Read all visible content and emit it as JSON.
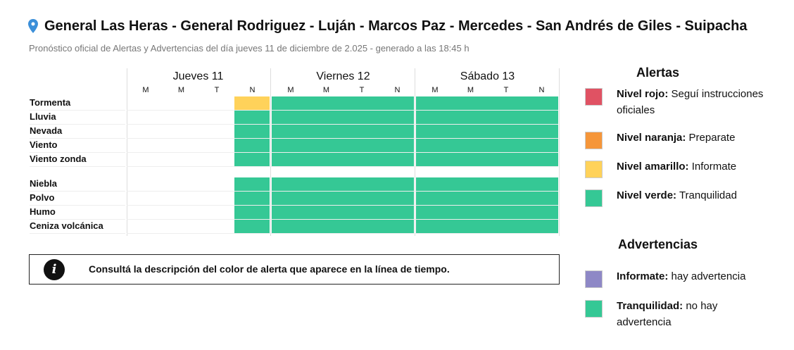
{
  "header": {
    "title": "General Las Heras - General Rodriguez - Luján - Marcos Paz - Mercedes - San Andrés de Giles - Suipacha",
    "subtitle": "Pronóstico oficial de Alertas y Advertencias del día jueves 11 de diciembre de 2.025 - generado a las 18:45 h",
    "icon": "map-pin-icon"
  },
  "colors": {
    "rojo": "#e05263",
    "naranja": "#f5963a",
    "amarillo": "#ffd25a",
    "verde": "#35c895",
    "violeta": "#8e88c6"
  },
  "grid": {
    "days": [
      "Jueves 11",
      "Viernes 12",
      "Sábado 13"
    ],
    "periods": [
      "M",
      "M",
      "T",
      "N"
    ],
    "groups": [
      [
        {
          "label": "Tormenta",
          "levels": [
            null,
            null,
            null,
            "amarillo",
            "verde",
            "verde",
            "verde",
            "verde",
            "verde",
            "verde",
            "verde",
            "verde"
          ]
        },
        {
          "label": "Lluvia",
          "levels": [
            null,
            null,
            null,
            "verde",
            "verde",
            "verde",
            "verde",
            "verde",
            "verde",
            "verde",
            "verde",
            "verde"
          ]
        },
        {
          "label": "Nevada",
          "levels": [
            null,
            null,
            null,
            "verde",
            "verde",
            "verde",
            "verde",
            "verde",
            "verde",
            "verde",
            "verde",
            "verde"
          ]
        },
        {
          "label": "Viento",
          "levels": [
            null,
            null,
            null,
            "verde",
            "verde",
            "verde",
            "verde",
            "verde",
            "verde",
            "verde",
            "verde",
            "verde"
          ]
        },
        {
          "label": "Viento zonda",
          "levels": [
            null,
            null,
            null,
            "verde",
            "verde",
            "verde",
            "verde",
            "verde",
            "verde",
            "verde",
            "verde",
            "verde"
          ]
        }
      ],
      [
        {
          "label": "Niebla",
          "levels": [
            null,
            null,
            null,
            "verde",
            "verde",
            "verde",
            "verde",
            "verde",
            "verde",
            "verde",
            "verde",
            "verde"
          ]
        },
        {
          "label": "Polvo",
          "levels": [
            null,
            null,
            null,
            "verde",
            "verde",
            "verde",
            "verde",
            "verde",
            "verde",
            "verde",
            "verde",
            "verde"
          ]
        },
        {
          "label": "Humo",
          "levels": [
            null,
            null,
            null,
            "verde",
            "verde",
            "verde",
            "verde",
            "verde",
            "verde",
            "verde",
            "verde",
            "verde"
          ]
        },
        {
          "label": "Ceniza volcánica",
          "levels": [
            null,
            null,
            null,
            "verde",
            "verde",
            "verde",
            "verde",
            "verde",
            "verde",
            "verde",
            "verde",
            "verde"
          ]
        }
      ]
    ]
  },
  "info": {
    "icon": "info-icon",
    "glyph": "i",
    "text": "Consultá la descripción del color de alerta que aparece en la línea de tiempo."
  },
  "legend": {
    "alertas_title": "Alertas",
    "alertas": [
      {
        "color": "rojo",
        "name": "Nivel rojo:",
        "desc": " Seguí instrucciones oficiales"
      },
      {
        "color": "naranja",
        "name": "Nivel naranja:",
        "desc": " Preparate"
      },
      {
        "color": "amarillo",
        "name": "Nivel amarillo:",
        "desc": " Informate"
      },
      {
        "color": "verde",
        "name": "Nivel verde:",
        "desc": " Tranquilidad"
      }
    ],
    "advertencias_title": "Advertencias",
    "advertencias": [
      {
        "color": "violeta",
        "name": "Informate:",
        "desc": " hay advertencia"
      },
      {
        "color": "verde",
        "name": "Tranquilidad:",
        "desc": " no hay advertencia"
      }
    ]
  }
}
